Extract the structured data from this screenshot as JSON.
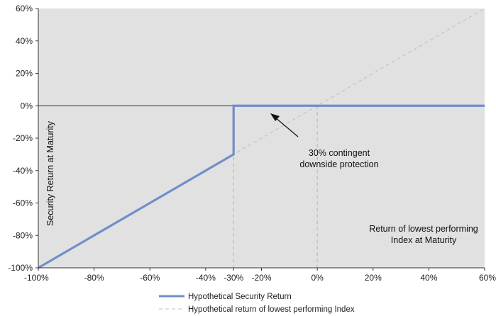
{
  "chart_data": {
    "type": "line",
    "x_min": -100,
    "x_max": 60,
    "y_min": -100,
    "y_max": 60,
    "x_ticks": [
      -100,
      -80,
      -60,
      -40,
      -30,
      -20,
      0,
      20,
      40,
      60
    ],
    "x_tick_labels": [
      "-100%",
      "-80%",
      "-60%",
      "-40%",
      "-30%",
      "-20%",
      "0%",
      "20%",
      "40%",
      "60%"
    ],
    "y_ticks": [
      60,
      40,
      20,
      0,
      -20,
      -40,
      -60,
      -80,
      -100
    ],
    "y_tick_labels": [
      "60%",
      "40%",
      "20%",
      "0%",
      "-20%",
      "-40%",
      "-60%",
      "-80%",
      "-100%"
    ],
    "ylabel": "Security Return at Maturity",
    "xlabel_line1": "Return of lowest performing",
    "xlabel_line2": "Index at Maturity",
    "annotation_line1": "30% contingent",
    "annotation_line2": "downside protection",
    "reference_lines_x": [
      -30,
      0
    ],
    "series": [
      {
        "name": "Hypothetical Security Return",
        "style": "solid",
        "color": "#6f8fc9",
        "x": [
          -100,
          -30,
          -30,
          60
        ],
        "y": [
          -100,
          -30,
          0,
          0
        ]
      },
      {
        "name": "Hypothetical return of lowest performing Index",
        "style": "dashed",
        "color": "#bdbdbd",
        "x": [
          -100,
          60
        ],
        "y": [
          -100,
          60
        ]
      }
    ],
    "legend": [
      "Hypothetical Security Return",
      "Hypothetical return of lowest performing Index"
    ],
    "colors": {
      "plot_background": "#e1e1e1",
      "zero_line": "#333333",
      "reference_line": "#b5b5b5",
      "arrow": "#111111"
    }
  }
}
